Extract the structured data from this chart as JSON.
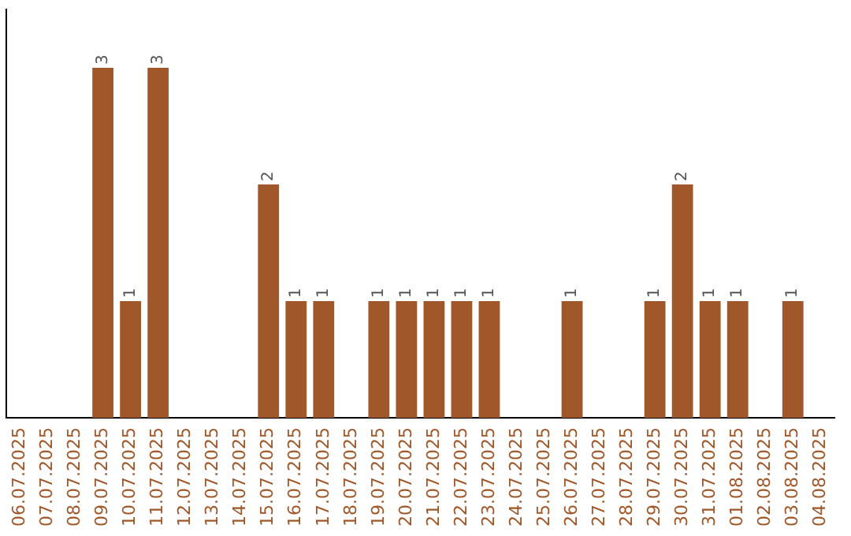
{
  "chart_data": {
    "type": "bar",
    "categories": [
      "06.07.2025",
      "07.07.2025",
      "08.07.2025",
      "09.07.2025",
      "10.07.2025",
      "11.07.2025",
      "12.07.2025",
      "13.07.2025",
      "14.07.2025",
      "15.07.2025",
      "16.07.2025",
      "17.07.2025",
      "18.07.2025",
      "19.07.2025",
      "20.07.2025",
      "21.07.2025",
      "22.07.2025",
      "23.07.2025",
      "24.07.2025",
      "25.07.2025",
      "26.07.2025",
      "27.07.2025",
      "28.07.2025",
      "29.07.2025",
      "30.07.2025",
      "31.07.2025",
      "01.08.2025",
      "02.08.2025",
      "03.08.2025",
      "04.08.2025"
    ],
    "values": [
      0,
      0,
      0,
      3,
      1,
      3,
      0,
      0,
      0,
      2,
      1,
      1,
      0,
      1,
      1,
      1,
      1,
      1,
      0,
      0,
      1,
      0,
      0,
      1,
      2,
      1,
      1,
      0,
      1,
      0
    ],
    "value_labels": [
      null,
      null,
      null,
      "3",
      "1",
      "3",
      null,
      null,
      null,
      "2",
      "1",
      "1",
      null,
      "1",
      "1",
      "1",
      "1",
      "1",
      null,
      null,
      "1",
      null,
      null,
      "1",
      "2",
      "1",
      "1",
      null,
      "1",
      null
    ],
    "color": "#a0582a",
    "tick_labels": "x",
    "grid": false,
    "legend": false
  }
}
